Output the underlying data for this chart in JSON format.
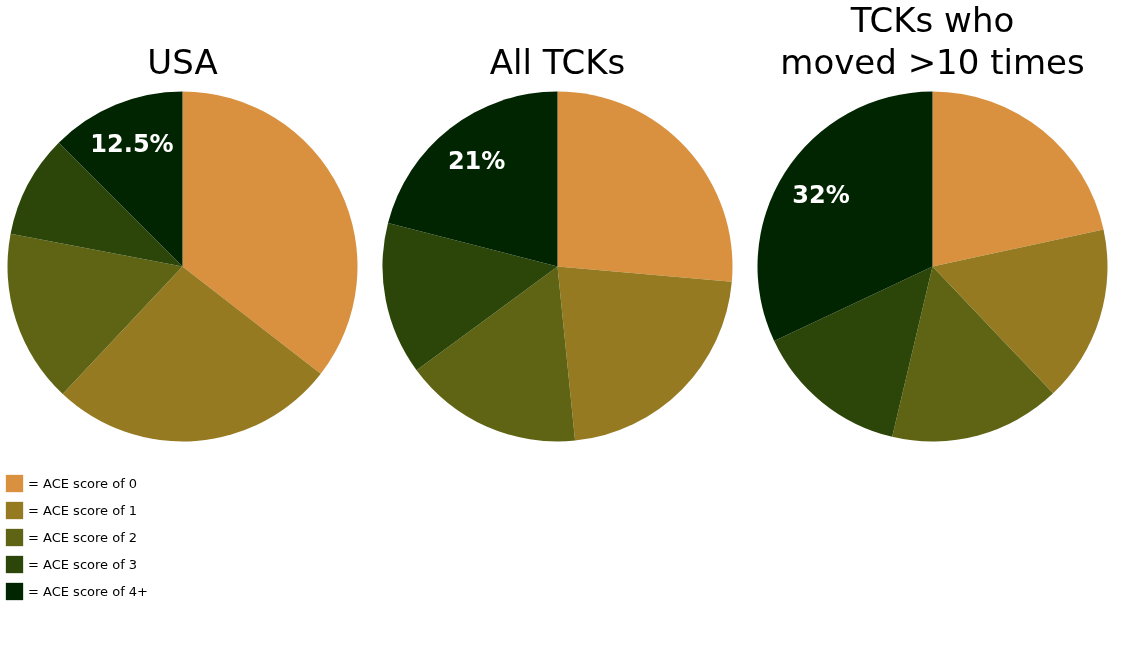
{
  "chart_data": [
    {
      "type": "pie",
      "title": "USA",
      "categories": [
        "= ACE score of 0",
        "= ACE score of 1",
        "= ACE score of 2",
        "= ACE score of 3",
        "= ACE score of 4+"
      ],
      "values": [
        35.5,
        26.5,
        16,
        9.5,
        12.5
      ],
      "colors": [
        "#d9913f",
        "#967a22",
        "#5e6414",
        "#2c4509",
        "#002500"
      ],
      "value_labels": [
        null,
        null,
        null,
        null,
        "12.5%"
      ],
      "legend": "bottom left"
    },
    {
      "type": "pie",
      "title": "All TCKs",
      "categories": [
        null,
        null,
        null,
        null,
        null
      ],
      "values": [
        26.4,
        22,
        16.5,
        14.1,
        21
      ],
      "colors": [
        "#d9913f",
        "#967a22",
        "#5e6414",
        "#2c4509",
        "#002500"
      ],
      "value_labels": [
        null,
        null,
        null,
        null,
        "21%"
      ]
    },
    {
      "type": "pie",
      "title": "TCKs who\nmoved >10 times",
      "categories": [
        null,
        null,
        null,
        null,
        null
      ],
      "values": [
        21.6,
        16.3,
        15.8,
        14.3,
        32
      ],
      "colors": [
        "#d9913f",
        "#967a22",
        "#5e6414",
        "#2c4509",
        "#002500"
      ],
      "value_labels": [
        null,
        null,
        null,
        null,
        "32%"
      ]
    }
  ]
}
